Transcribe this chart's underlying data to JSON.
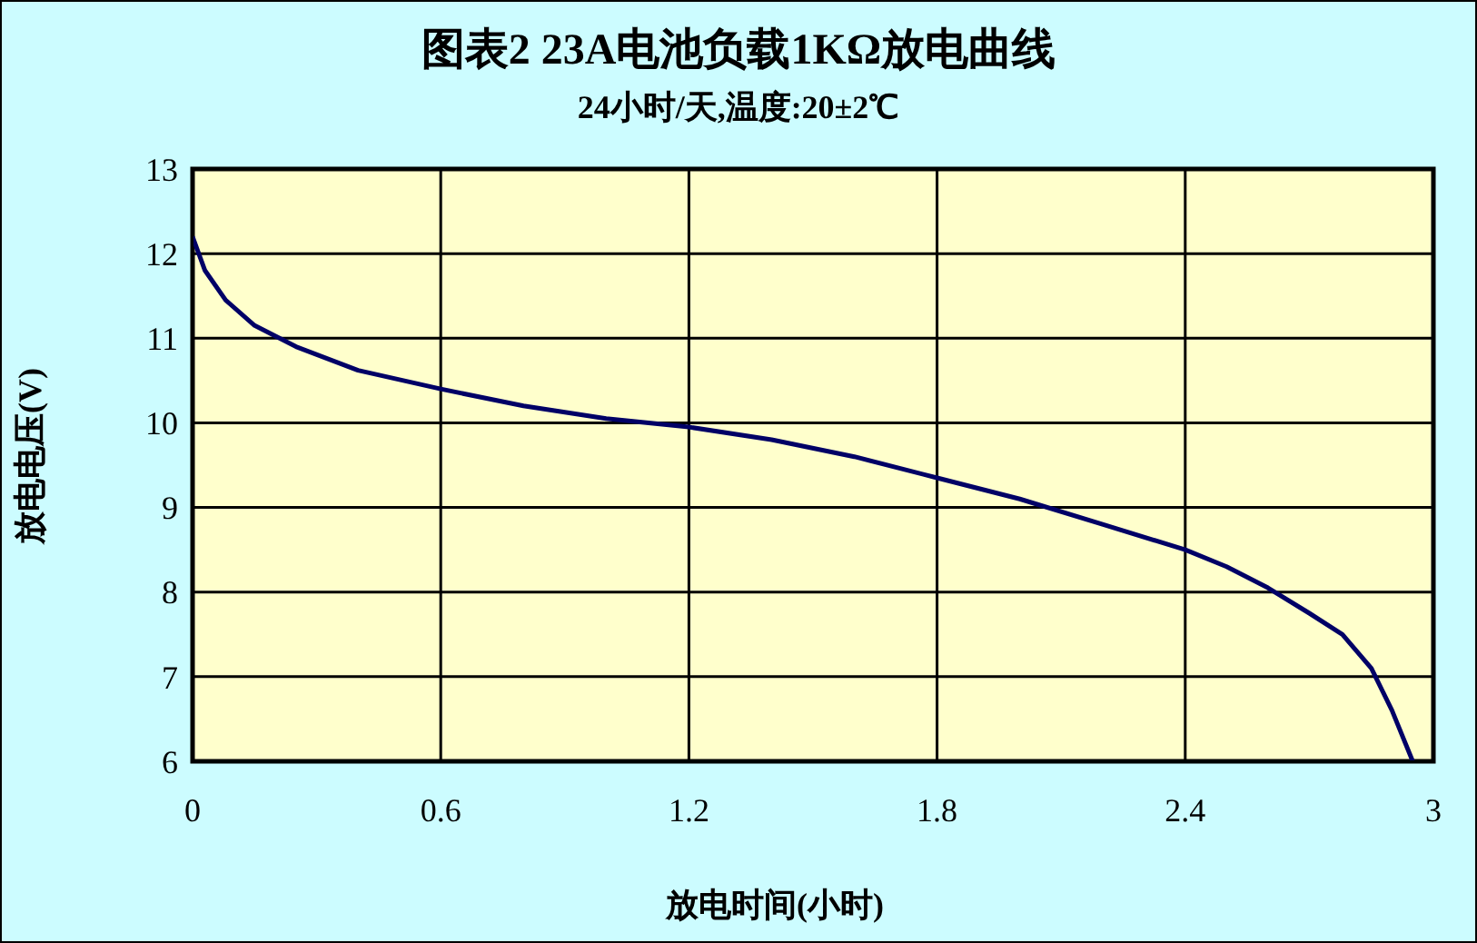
{
  "chart_data": {
    "type": "line",
    "title": "图表2 23A电池负载1KΩ放电曲线",
    "subtitle": "24小时/天,温度:20±2℃",
    "xlabel": "放电时间(小时)",
    "ylabel": "放电电压(V)",
    "x": [
      0,
      0.03,
      0.08,
      0.15,
      0.25,
      0.4,
      0.6,
      0.8,
      1.0,
      1.2,
      1.4,
      1.6,
      1.8,
      2.0,
      2.2,
      2.4,
      2.5,
      2.6,
      2.7,
      2.78,
      2.85,
      2.9,
      2.95
    ],
    "series": [
      {
        "color": "#000066",
        "values": [
          12.2,
          11.8,
          11.45,
          11.15,
          10.9,
          10.62,
          10.4,
          10.2,
          10.05,
          9.95,
          9.8,
          9.6,
          9.35,
          9.1,
          8.8,
          8.5,
          8.3,
          8.05,
          7.75,
          7.5,
          7.1,
          6.6,
          6.0
        ]
      }
    ],
    "xlim": [
      0,
      3
    ],
    "xticks": [
      0,
      0.6,
      1.2,
      1.8,
      2.4,
      3
    ],
    "ylim": [
      6,
      13
    ],
    "yticks": [
      6,
      7,
      8,
      9,
      10,
      11,
      12,
      13
    ],
    "grid": true,
    "marker": "none",
    "line_style": "solid"
  }
}
